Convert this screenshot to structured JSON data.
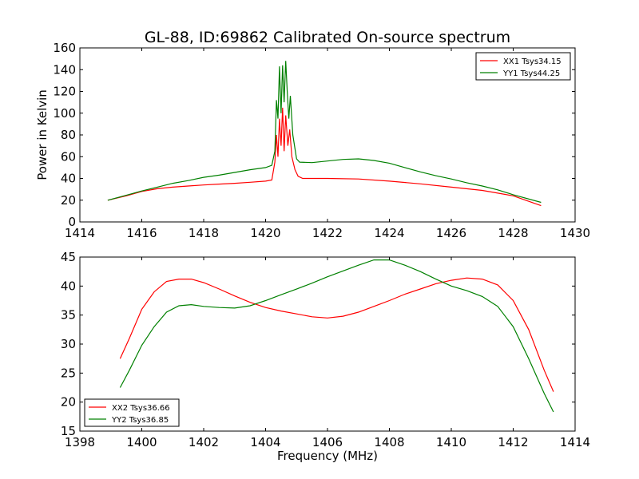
{
  "chart_data": [
    {
      "type": "line",
      "title": "GL-88, ID:69862 Calibrated On-source spectrum",
      "xlabel": "",
      "ylabel": "Power in Kelvin",
      "xlim": [
        1414,
        1430
      ],
      "ylim": [
        0,
        160
      ],
      "xticks": [
        "1414",
        "1416",
        "1418",
        "1420",
        "1422",
        "1424",
        "1426",
        "1428",
        "1430"
      ],
      "yticks": [
        "0",
        "20",
        "40",
        "60",
        "80",
        "100",
        "120",
        "140",
        "160"
      ],
      "legend_position": "top-right",
      "grid": false,
      "series": [
        {
          "name": "XX1 Tsys34.15",
          "color": "#ff0000",
          "points": [
            [
              1414.9,
              20
            ],
            [
              1415.5,
              24
            ],
            [
              1416,
              28
            ],
            [
              1416.5,
              30.5
            ],
            [
              1417,
              32
            ],
            [
              1417.5,
              33
            ],
            [
              1418,
              34
            ],
            [
              1418.5,
              34.8
            ],
            [
              1419,
              35.5
            ],
            [
              1419.5,
              36.5
            ],
            [
              1420,
              37.5
            ],
            [
              1420.2,
              38.5
            ],
            [
              1420.3,
              55
            ],
            [
              1420.35,
              80
            ],
            [
              1420.4,
              60
            ],
            [
              1420.45,
              95
            ],
            [
              1420.5,
              70
            ],
            [
              1420.55,
              105
            ],
            [
              1420.6,
              65
            ],
            [
              1420.65,
              98
            ],
            [
              1420.72,
              70
            ],
            [
              1420.78,
              85
            ],
            [
              1420.85,
              60
            ],
            [
              1420.95,
              48
            ],
            [
              1421.05,
              42
            ],
            [
              1421.2,
              40
            ],
            [
              1422,
              40
            ],
            [
              1423,
              39.5
            ],
            [
              1424,
              37.5
            ],
            [
              1425,
              35
            ],
            [
              1426,
              32
            ],
            [
              1427,
              29
            ],
            [
              1428,
              24
            ],
            [
              1428.9,
              15
            ]
          ]
        },
        {
          "name": "YY1 Tsys44.25",
          "color": "#008000",
          "points": [
            [
              1414.9,
              20
            ],
            [
              1415.5,
              24.5
            ],
            [
              1416,
              28.5
            ],
            [
              1416.5,
              32
            ],
            [
              1417,
              35.5
            ],
            [
              1417.5,
              38
            ],
            [
              1418,
              41
            ],
            [
              1418.5,
              43
            ],
            [
              1419,
              45.5
            ],
            [
              1419.5,
              48
            ],
            [
              1420,
              50
            ],
            [
              1420.2,
              52
            ],
            [
              1420.3,
              65
            ],
            [
              1420.35,
              112
            ],
            [
              1420.4,
              95
            ],
            [
              1420.45,
              143
            ],
            [
              1420.5,
              100
            ],
            [
              1420.55,
              144
            ],
            [
              1420.6,
              110
            ],
            [
              1420.65,
              148
            ],
            [
              1420.7,
              120
            ],
            [
              1420.75,
              95
            ],
            [
              1420.8,
              116
            ],
            [
              1420.88,
              80
            ],
            [
              1421,
              58
            ],
            [
              1421.1,
              55
            ],
            [
              1421.5,
              54.5
            ],
            [
              1422,
              56
            ],
            [
              1422.5,
              57.5
            ],
            [
              1423,
              58
            ],
            [
              1423.5,
              56.5
            ],
            [
              1424,
              54
            ],
            [
              1424.5,
              50
            ],
            [
              1425,
              46
            ],
            [
              1425.5,
              42.5
            ],
            [
              1426,
              39.5
            ],
            [
              1426.5,
              36
            ],
            [
              1427,
              33
            ],
            [
              1427.5,
              29.5
            ],
            [
              1428,
              25
            ],
            [
              1428.9,
              18
            ]
          ]
        }
      ]
    },
    {
      "type": "line",
      "title": "",
      "xlabel": "Frequency (MHz)",
      "ylabel": "",
      "xlim": [
        1398,
        1414
      ],
      "ylim": [
        15,
        45
      ],
      "xticks": [
        "1398",
        "1400",
        "1402",
        "1404",
        "1406",
        "1408",
        "1410",
        "1412",
        "1414"
      ],
      "yticks": [
        "15",
        "20",
        "25",
        "30",
        "35",
        "40",
        "45"
      ],
      "legend_position": "bottom-left",
      "grid": false,
      "series": [
        {
          "name": "XX2 Tsys36.66",
          "color": "#ff0000",
          "points": [
            [
              1399.3,
              27.5
            ],
            [
              1399.6,
              31
            ],
            [
              1400,
              36
            ],
            [
              1400.4,
              39
            ],
            [
              1400.8,
              40.8
            ],
            [
              1401.2,
              41.2
            ],
            [
              1401.6,
              41.2
            ],
            [
              1402,
              40.6
            ],
            [
              1402.5,
              39.5
            ],
            [
              1403,
              38.3
            ],
            [
              1403.5,
              37.2
            ],
            [
              1404,
              36.3
            ],
            [
              1404.5,
              35.7
            ],
            [
              1405,
              35.2
            ],
            [
              1405.5,
              34.7
            ],
            [
              1406,
              34.5
            ],
            [
              1406.5,
              34.8
            ],
            [
              1407,
              35.5
            ],
            [
              1407.5,
              36.5
            ],
            [
              1408,
              37.5
            ],
            [
              1408.5,
              38.6
            ],
            [
              1409,
              39.5
            ],
            [
              1409.5,
              40.4
            ],
            [
              1410,
              41
            ],
            [
              1410.5,
              41.4
            ],
            [
              1411,
              41.2
            ],
            [
              1411.5,
              40.2
            ],
            [
              1412,
              37.5
            ],
            [
              1412.5,
              32.5
            ],
            [
              1413,
              25.5
            ],
            [
              1413.3,
              21.8
            ]
          ]
        },
        {
          "name": "YY2 Tsys36.85",
          "color": "#008000",
          "points": [
            [
              1399.3,
              22.5
            ],
            [
              1399.6,
              25.5
            ],
            [
              1400,
              29.8
            ],
            [
              1400.4,
              33
            ],
            [
              1400.8,
              35.5
            ],
            [
              1401.2,
              36.6
            ],
            [
              1401.6,
              36.8
            ],
            [
              1402,
              36.5
            ],
            [
              1402.5,
              36.3
            ],
            [
              1403,
              36.2
            ],
            [
              1403.5,
              36.6
            ],
            [
              1404,
              37.5
            ],
            [
              1404.5,
              38.5
            ],
            [
              1405,
              39.5
            ],
            [
              1405.5,
              40.5
            ],
            [
              1406,
              41.6
            ],
            [
              1406.5,
              42.6
            ],
            [
              1407,
              43.6
            ],
            [
              1407.5,
              44.5
            ],
            [
              1408,
              44.5
            ],
            [
              1408.5,
              43.6
            ],
            [
              1409,
              42.5
            ],
            [
              1409.5,
              41.2
            ],
            [
              1410,
              40
            ],
            [
              1410.5,
              39.2
            ],
            [
              1411,
              38.2
            ],
            [
              1411.5,
              36.5
            ],
            [
              1412,
              33
            ],
            [
              1412.5,
              27.5
            ],
            [
              1413,
              21.5
            ],
            [
              1413.3,
              18.3
            ]
          ]
        }
      ]
    }
  ]
}
